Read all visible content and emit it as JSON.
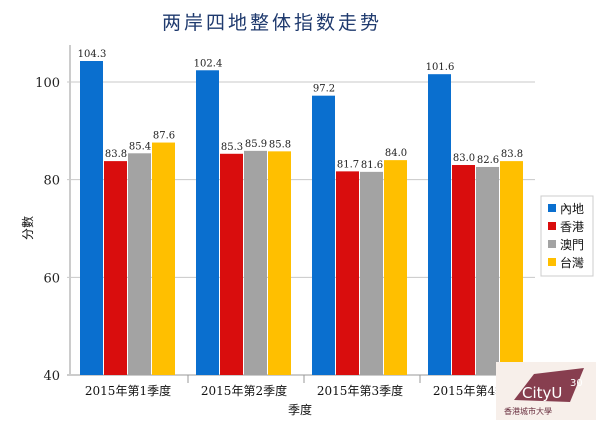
{
  "chart_data": {
    "type": "bar",
    "title": "两岸四地整体指数走势",
    "xlabel": "季度",
    "ylabel": "分數",
    "ylim": [
      40,
      105
    ],
    "yticks": [
      40,
      60,
      80,
      100
    ],
    "grid": true,
    "legend_placement": "right",
    "categories": [
      "2015年第1季度",
      "2015年第2季度",
      "2015年第3季度",
      "2015年第4季度"
    ],
    "series": [
      {
        "name": "內地",
        "color": "#0a6fcf",
        "values": [
          104.3,
          102.4,
          97.2,
          101.6
        ]
      },
      {
        "name": "香港",
        "color": "#d90d0d",
        "values": [
          83.8,
          85.3,
          81.7,
          83.0
        ]
      },
      {
        "name": "澳門",
        "color": "#a3a3a3",
        "values": [
          85.4,
          85.9,
          81.6,
          82.6
        ]
      },
      {
        "name": "台灣",
        "color": "#ffbf00",
        "values": [
          87.6,
          85.8,
          84.0,
          83.8
        ]
      }
    ]
  },
  "logo": {
    "brand": "CityU",
    "number": "30",
    "caption": "香港城市大學"
  }
}
